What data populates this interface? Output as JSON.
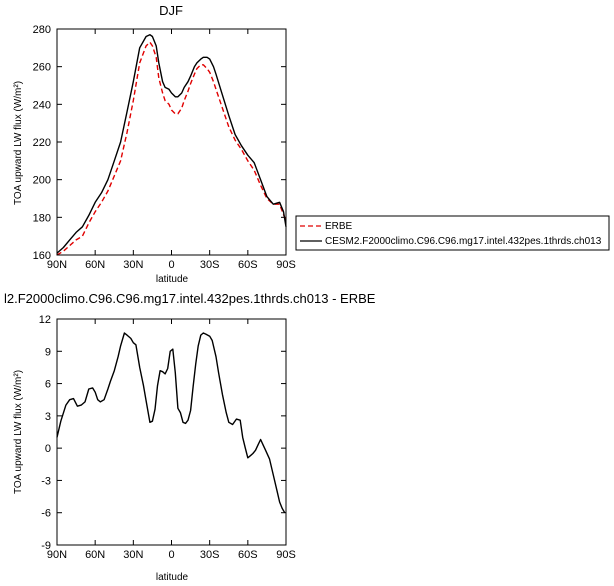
{
  "chart_data": [
    {
      "type": "line",
      "title": "DJF",
      "xlabel": "latitude",
      "ylabel": "TOA upward LW flux (W/m²)",
      "x_tick_labels": [
        "90N",
        "60N",
        "30N",
        "0",
        "30S",
        "60S",
        "90S"
      ],
      "x_tick_values": [
        -90,
        -60,
        -30,
        0,
        30,
        60,
        90
      ],
      "xlim": [
        -90,
        90
      ],
      "ylim": [
        160,
        280
      ],
      "y_ticks": [
        160,
        180,
        200,
        220,
        240,
        260,
        280
      ],
      "legend_position": "right",
      "series": [
        {
          "name": "ERBE",
          "color": "#e00000",
          "dashed": true,
          "x": [
            -90,
            -85,
            -80,
            -75,
            -70,
            -65,
            -60,
            -55,
            -50,
            -45,
            -40,
            -35,
            -30,
            -25,
            -20,
            -17,
            -15,
            -12,
            -10,
            -7,
            -5,
            -2,
            0,
            3,
            5,
            8,
            10,
            13,
            15,
            18,
            20,
            23,
            25,
            28,
            30,
            33,
            35,
            40,
            45,
            50,
            55,
            60,
            65,
            70,
            75,
            80,
            85,
            90
          ],
          "y": [
            160,
            162,
            165,
            168,
            170,
            177,
            183,
            188,
            194,
            202,
            210,
            225,
            242,
            262,
            271,
            273,
            271,
            265,
            254,
            246,
            242,
            240,
            237,
            235,
            235,
            238,
            242,
            247,
            251,
            256,
            259,
            261,
            261,
            259,
            257,
            252,
            248,
            238,
            228,
            221,
            216,
            210,
            205,
            197,
            190,
            187,
            187,
            178
          ]
        },
        {
          "name": "CESM2.F2000climo.C96.C96.mg17.intel.432pes.1thrds.ch013",
          "color": "#000000",
          "dashed": false,
          "x": [
            -90,
            -85,
            -80,
            -75,
            -70,
            -65,
            -60,
            -55,
            -50,
            -45,
            -40,
            -35,
            -30,
            -25,
            -20,
            -17,
            -15,
            -12,
            -10,
            -7,
            -5,
            -2,
            0,
            3,
            5,
            8,
            10,
            13,
            15,
            18,
            20,
            23,
            25,
            28,
            30,
            33,
            35,
            40,
            45,
            50,
            55,
            60,
            65,
            70,
            75,
            80,
            85,
            88,
            90
          ],
          "y": [
            161,
            164,
            168,
            172,
            175,
            181,
            188,
            193,
            200,
            210,
            220,
            236,
            252,
            270,
            276,
            277,
            276,
            271,
            262,
            252,
            249,
            248,
            246,
            244,
            244,
            246,
            249,
            252,
            255,
            260,
            262,
            264,
            265,
            265,
            264,
            260,
            256,
            245,
            234,
            224,
            218,
            213,
            209,
            200,
            191,
            187,
            188,
            183,
            175
          ]
        }
      ]
    },
    {
      "type": "line",
      "title": "l2.F2000climo.C96.C96.mg17.intel.432pes.1thrds.ch013 - ERBE",
      "xlabel": "latitude",
      "ylabel": "TOA upward LW flux (W/m²)",
      "x_tick_labels": [
        "90N",
        "60N",
        "30N",
        "0",
        "30S",
        "60S",
        "90S"
      ],
      "x_tick_values": [
        -90,
        -60,
        -30,
        0,
        30,
        60,
        90
      ],
      "xlim": [
        -90,
        90
      ],
      "ylim": [
        -9,
        12
      ],
      "y_ticks": [
        -9,
        -6,
        -3,
        0,
        3,
        6,
        9,
        12
      ],
      "series": [
        {
          "color": "#000000",
          "dashed": false,
          "x": [
            -90,
            -87,
            -83,
            -80,
            -77,
            -74,
            -71,
            -68,
            -65,
            -62,
            -60,
            -58,
            -56,
            -53,
            -50,
            -48,
            -45,
            -42,
            -40,
            -37,
            -35,
            -32,
            -30,
            -28,
            -25,
            -22,
            -20,
            -17,
            -15,
            -13,
            -11,
            -9,
            -7,
            -5,
            -3,
            -1,
            1,
            3,
            5,
            7,
            9,
            11,
            13,
            15,
            17,
            19,
            21,
            23,
            25,
            27,
            30,
            32,
            35,
            37,
            40,
            43,
            45,
            48,
            51,
            54,
            56,
            58,
            60,
            62,
            64,
            66,
            68,
            70,
            72,
            74,
            77,
            80,
            83,
            85,
            87,
            89
          ],
          "y": [
            1,
            2.5,
            4.0,
            4.5,
            4.6,
            3.9,
            4.0,
            4.3,
            5.5,
            5.6,
            5.2,
            4.5,
            4.3,
            4.5,
            5.5,
            6.2,
            7.2,
            8.5,
            9.5,
            10.7,
            10.5,
            10.2,
            9.8,
            9.6,
            7.5,
            5.8,
            4.4,
            2.4,
            2.5,
            3.6,
            5.8,
            7.2,
            7.1,
            6.9,
            7.4,
            9.0,
            9.2,
            7.0,
            3.7,
            3.3,
            2.4,
            2.3,
            2.6,
            3.5,
            5.7,
            7.8,
            9.5,
            10.5,
            10.7,
            10.6,
            10.4,
            10.0,
            8.5,
            7.0,
            5.0,
            3.3,
            2.4,
            2.2,
            2.7,
            2.6,
            1.0,
            0.0,
            -0.9,
            -0.7,
            -0.5,
            -0.2,
            0.3,
            0.8,
            0.3,
            -0.2,
            -1.0,
            -2.5,
            -4.0,
            -5.0,
            -5.6,
            -6.0
          ]
        }
      ]
    }
  ]
}
